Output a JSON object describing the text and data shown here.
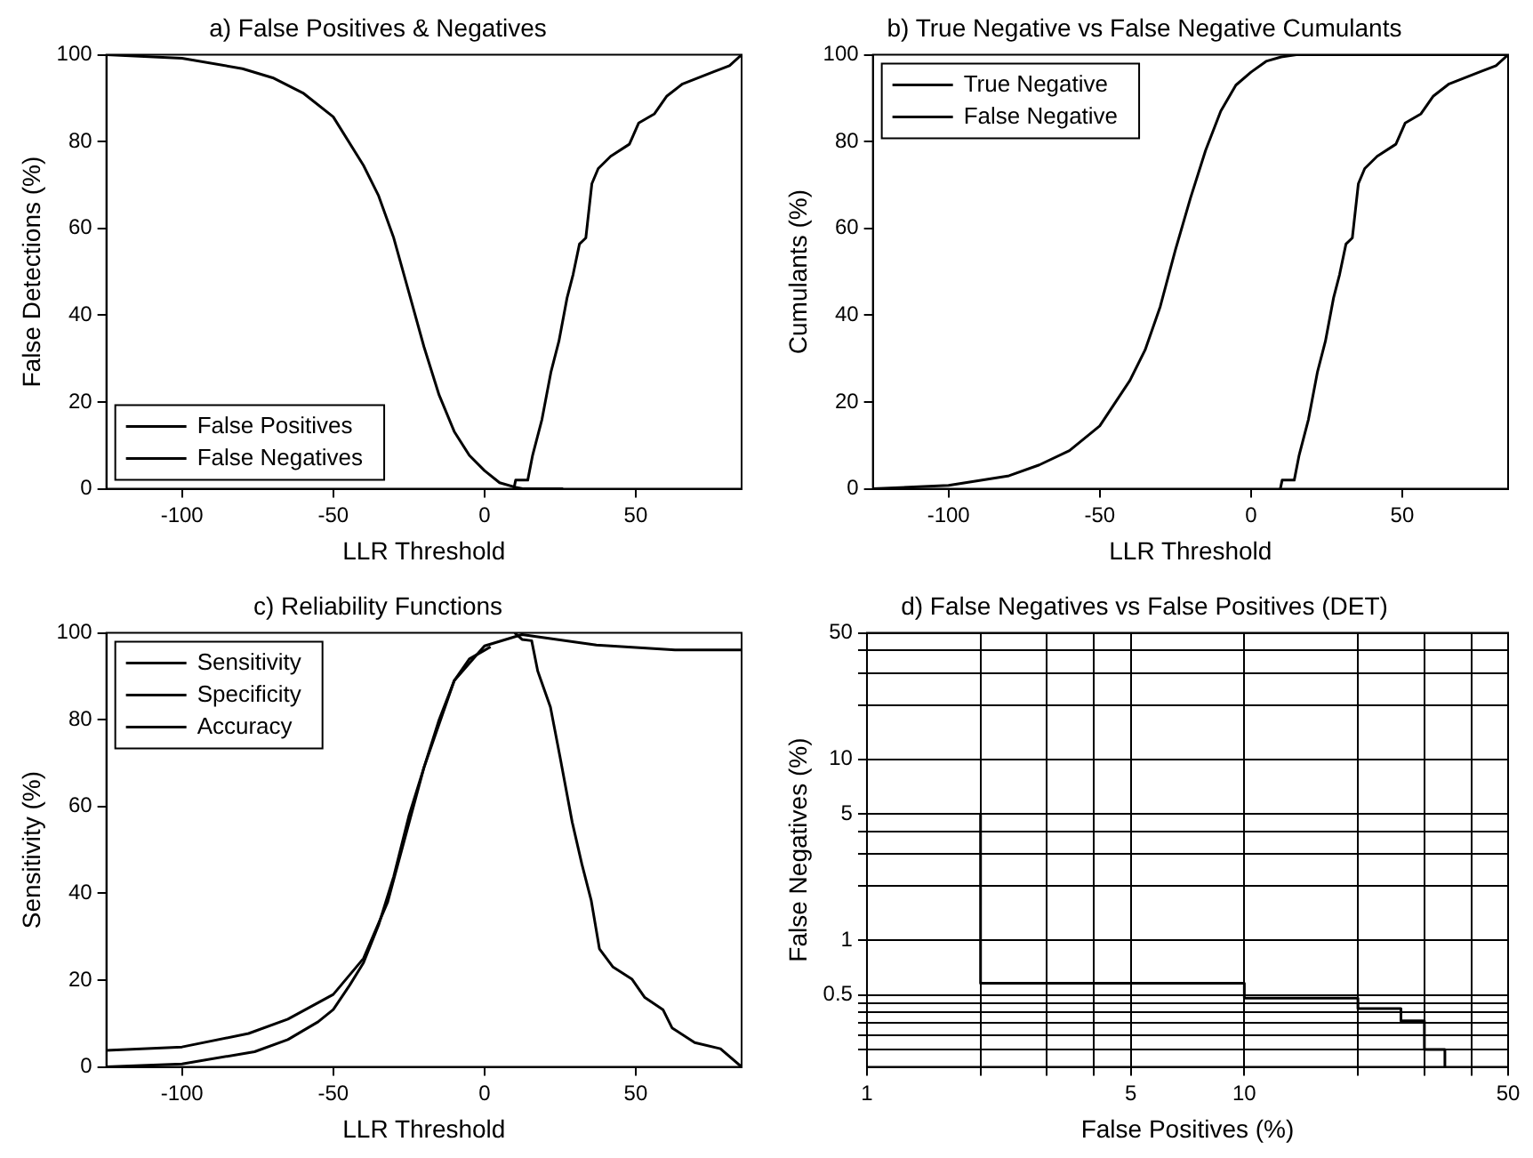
{
  "chart_data": [
    {
      "type": "line",
      "title": "a) False Positives & Negatives",
      "xlabel": "LLR Threshold",
      "ylabel": "False Detections (%)",
      "xlim": [
        -125,
        85
      ],
      "ylim": [
        0,
        100
      ],
      "xticks": [
        -100,
        -50,
        0,
        50
      ],
      "yticks": [
        0,
        20,
        40,
        60,
        80,
        100
      ],
      "grid": false,
      "legend": "bottom left",
      "series": [
        {
          "name": "False Positives",
          "color": "#000000",
          "x": [
            -125,
            -100,
            -80,
            -70,
            -60,
            -50,
            -40,
            -35,
            -30,
            -25,
            -20,
            -15,
            -10,
            -5,
            0,
            5,
            10,
            13,
            26
          ],
          "values": [
            100,
            99.2,
            96.8,
            94.7,
            91.2,
            85.7,
            74.5,
            67.5,
            57.8,
            45.3,
            32.7,
            21.6,
            13.2,
            7.7,
            4.2,
            1.4,
            0.4,
            0,
            0
          ]
        },
        {
          "name": "False Negatives",
          "color": "#000000",
          "x": [
            9.7,
            10.3,
            14.3,
            15.9,
            19,
            22,
            24.6,
            27.3,
            29.3,
            31.4,
            33.5,
            35.5,
            37.6,
            41.7,
            47.9,
            51,
            56.2,
            60.3,
            65.5,
            75.8,
            81,
            85
          ],
          "values": [
            0,
            2,
            2,
            7.7,
            16,
            27,
            34,
            44,
            49.4,
            56.4,
            57.8,
            70.3,
            73.8,
            76.6,
            79.4,
            84.3,
            86.4,
            90.5,
            93.3,
            96.1,
            97.5,
            100
          ]
        }
      ]
    },
    {
      "type": "line",
      "title": "b) True Negative vs False Negative Cumulants",
      "xlabel": "LLR Threshold",
      "ylabel": "Cumulants (%)",
      "xlim": [
        -125,
        85
      ],
      "ylim": [
        0,
        100
      ],
      "xticks": [
        -100,
        -50,
        0,
        50
      ],
      "yticks": [
        0,
        20,
        40,
        60,
        80,
        100
      ],
      "grid": false,
      "legend": "top left",
      "series": [
        {
          "name": "True Negative",
          "color": "#000000",
          "x": [
            -125,
            -100,
            -80,
            -70,
            -60,
            -50,
            -40,
            -35,
            -30,
            -25,
            -20,
            -15,
            -10,
            -5,
            0,
            5,
            10,
            15,
            85
          ],
          "values": [
            0,
            0.8,
            3,
            5.5,
            8.8,
            14.5,
            25,
            32,
            42,
            55,
            67,
            78,
            87,
            93,
            96,
            98.5,
            99.5,
            100,
            100
          ]
        },
        {
          "name": "False Negative",
          "color": "#000000",
          "x": [
            9.7,
            10.3,
            14.3,
            15.9,
            19,
            22,
            24.6,
            27.3,
            29.3,
            31.4,
            33.5,
            35.5,
            37.6,
            41.7,
            47.9,
            51,
            56.2,
            60.3,
            65.5,
            75.8,
            81,
            85
          ],
          "values": [
            0,
            2,
            2,
            7.7,
            16,
            27,
            34,
            44,
            49.4,
            56.4,
            57.8,
            70.3,
            73.8,
            76.6,
            79.4,
            84.3,
            86.4,
            90.5,
            93.3,
            96.1,
            97.5,
            100
          ]
        }
      ]
    },
    {
      "type": "line",
      "title": "c) Reliability Functions",
      "xlabel": "LLR Threshold",
      "ylabel": "Sensitivity (%)",
      "xlim": [
        -125,
        85
      ],
      "ylim": [
        0,
        100
      ],
      "xticks": [
        -100,
        -50,
        0,
        50
      ],
      "yticks": [
        0,
        20,
        40,
        60,
        80,
        100
      ],
      "grid": false,
      "legend": "top left",
      "series": [
        {
          "name": "Sensitivity",
          "color": "#000000",
          "x": [
            10,
            12.4,
            15.6,
            17.6,
            21.8,
            24.9,
            29,
            32.2,
            35.3,
            38,
            42.5,
            48.8,
            53,
            59,
            62,
            69.5,
            78,
            85
          ],
          "values": [
            100,
            98.5,
            98.2,
            91.2,
            82.9,
            71.7,
            56.4,
            46.7,
            38.3,
            27.2,
            23,
            20.2,
            16,
            13.2,
            9,
            5.6,
            4.2,
            0
          ]
        },
        {
          "name": "Specificity",
          "color": "#000000",
          "x": [
            -125,
            -100,
            -76,
            -65,
            -55,
            -50,
            -44.6,
            -40,
            -35,
            -30,
            -25,
            -20,
            -15,
            -10,
            -5,
            0,
            2
          ],
          "values": [
            0,
            0.7,
            3.5,
            6.3,
            10.4,
            13.2,
            18.8,
            24,
            32.7,
            43.9,
            57.8,
            69,
            80,
            89,
            94,
            96,
            96.8
          ]
        },
        {
          "name": "Accuracy",
          "color": "#000000",
          "x": [
            -125,
            -100,
            -78,
            -65,
            -50,
            -40,
            -32,
            -20,
            -10,
            0,
            12.4,
            37,
            63,
            85
          ],
          "values": [
            3.8,
            4.6,
            7.7,
            11,
            16.7,
            25,
            38,
            69,
            89,
            97,
            99.6,
            97.2,
            96.1,
            96.1
          ]
        }
      ]
    },
    {
      "type": "line",
      "title": "d) False Negatives vs False Positives (DET)",
      "xlabel": "False Positives (%)",
      "ylabel": "False Negatives (%)",
      "log": "xy",
      "grid": true,
      "legend": false,
      "xlim": [
        1,
        50
      ],
      "ylim": [
        0.2,
        50
      ],
      "xticks": [
        1,
        {
          "value": 2,
          "label": null
        },
        {
          "value": 3,
          "label": null
        },
        {
          "value": 4,
          "label": null
        },
        5,
        10,
        {
          "value": 20,
          "label": null
        },
        {
          "value": 30,
          "label": null
        },
        {
          "value": 40,
          "label": null
        },
        50
      ],
      "yticks": [
        {
          "value": 0.25,
          "label": null
        },
        {
          "value": 0.3,
          "label": null
        },
        {
          "value": 0.35,
          "label": null
        },
        {
          "value": 0.4,
          "label": null
        },
        {
          "value": 0.45,
          "label": null
        },
        0.5,
        1,
        {
          "value": 2,
          "label": null
        },
        {
          "value": 3,
          "label": null
        },
        {
          "value": 4,
          "label": null
        },
        5,
        10,
        {
          "value": 20,
          "label": null
        },
        {
          "value": 30,
          "label": null
        },
        {
          "value": 40,
          "label": null
        },
        50
      ],
      "series": [
        {
          "color": "#000000",
          "x": [
            2,
            2,
            10,
            10,
            20,
            20,
            26,
            26,
            30,
            30,
            34,
            34
          ],
          "values": [
            5,
            0.58,
            0.58,
            0.48,
            0.48,
            0.42,
            0.42,
            0.36,
            0.36,
            0.25,
            0.25,
            0.2
          ]
        }
      ]
    }
  ]
}
